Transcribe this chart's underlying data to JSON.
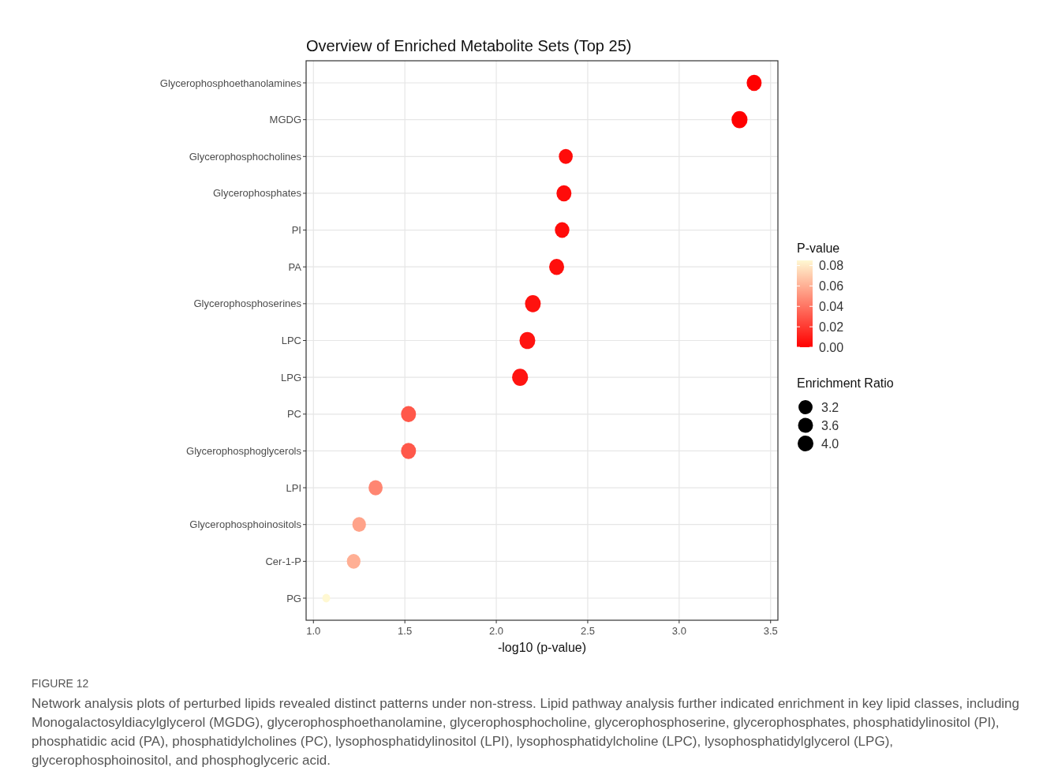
{
  "chart_data": {
    "type": "bubble",
    "title": "Overview of Enriched Metabolite Sets (Top 25)",
    "xlabel": "-log10 (p-value)",
    "clabel": "P-value",
    "legend_title": "Enrichment Ratio",
    "categories": [
      "Glycerophosphoethanolamines",
      "MGDG",
      "Glycerophosphocholines",
      "Glycerophosphates",
      "PI",
      "PA",
      "Glycerophosphoserines",
      "LPC",
      "LPG",
      "PC",
      "Glycerophosphoglycerols",
      "LPI",
      "Glycerophosphoinositols",
      "Cer-1-P",
      "PG"
    ],
    "orientation": "horizontal",
    "values": [
      3.41,
      3.33,
      2.38,
      2.37,
      2.36,
      2.33,
      2.2,
      2.17,
      2.13,
      1.52,
      1.52,
      1.34,
      1.25,
      1.22,
      1.07
    ],
    "cvalues": [
      0.0004,
      0.0005,
      0.004,
      0.004,
      0.004,
      0.005,
      0.006,
      0.007,
      0.007,
      0.03,
      0.03,
      0.046,
      0.056,
      0.06,
      0.085
    ],
    "sizes": [
      3.6,
      4.1,
      3.1,
      3.6,
      3.4,
      3.6,
      4.0,
      4.0,
      4.1,
      3.6,
      3.6,
      3.2,
      3.0,
      3.0,
      1.0
    ],
    "size_legend": [
      3.2,
      3.6,
      {
        "value": 4,
        "label": "4.0"
      }
    ],
    "xlim": [
      0.96,
      3.54
    ],
    "xticks": [
      {
        "value": 1,
        "label": "1.0"
      },
      1.5,
      {
        "value": 2,
        "label": "2.0"
      },
      2.5,
      {
        "value": 3,
        "label": "3.0"
      },
      3.5
    ],
    "clim": [
      0,
      0.085
    ],
    "cticks": [
      {
        "value": 0,
        "label": "0.00"
      },
      0.02,
      0.04,
      0.06,
      0.08
    ],
    "grid": true,
    "annotations": [
      "FIGURE 12",
      "Network analysis plots of perturbed lipids revealed distinct patterns under non-stress. Lipid pathway analysis further indicated enrichment in key lipid classes, including Monogalactosyldiacylglycerol (MGDG), glycerophosphoethanolamine, glycerophosphocholine, glycerophosphoserine, glycerophosphates, phosphatidylinositol (PI), phosphatidic acid (PA), phosphatidylcholines (PC), lysophosphatidylinositol (LPI), lysophosphatidylcholine (LPC), lysophosphatidylglycerol (LPG), glycerophosphoinositol, and phosphoglyceric acid."
    ]
  }
}
